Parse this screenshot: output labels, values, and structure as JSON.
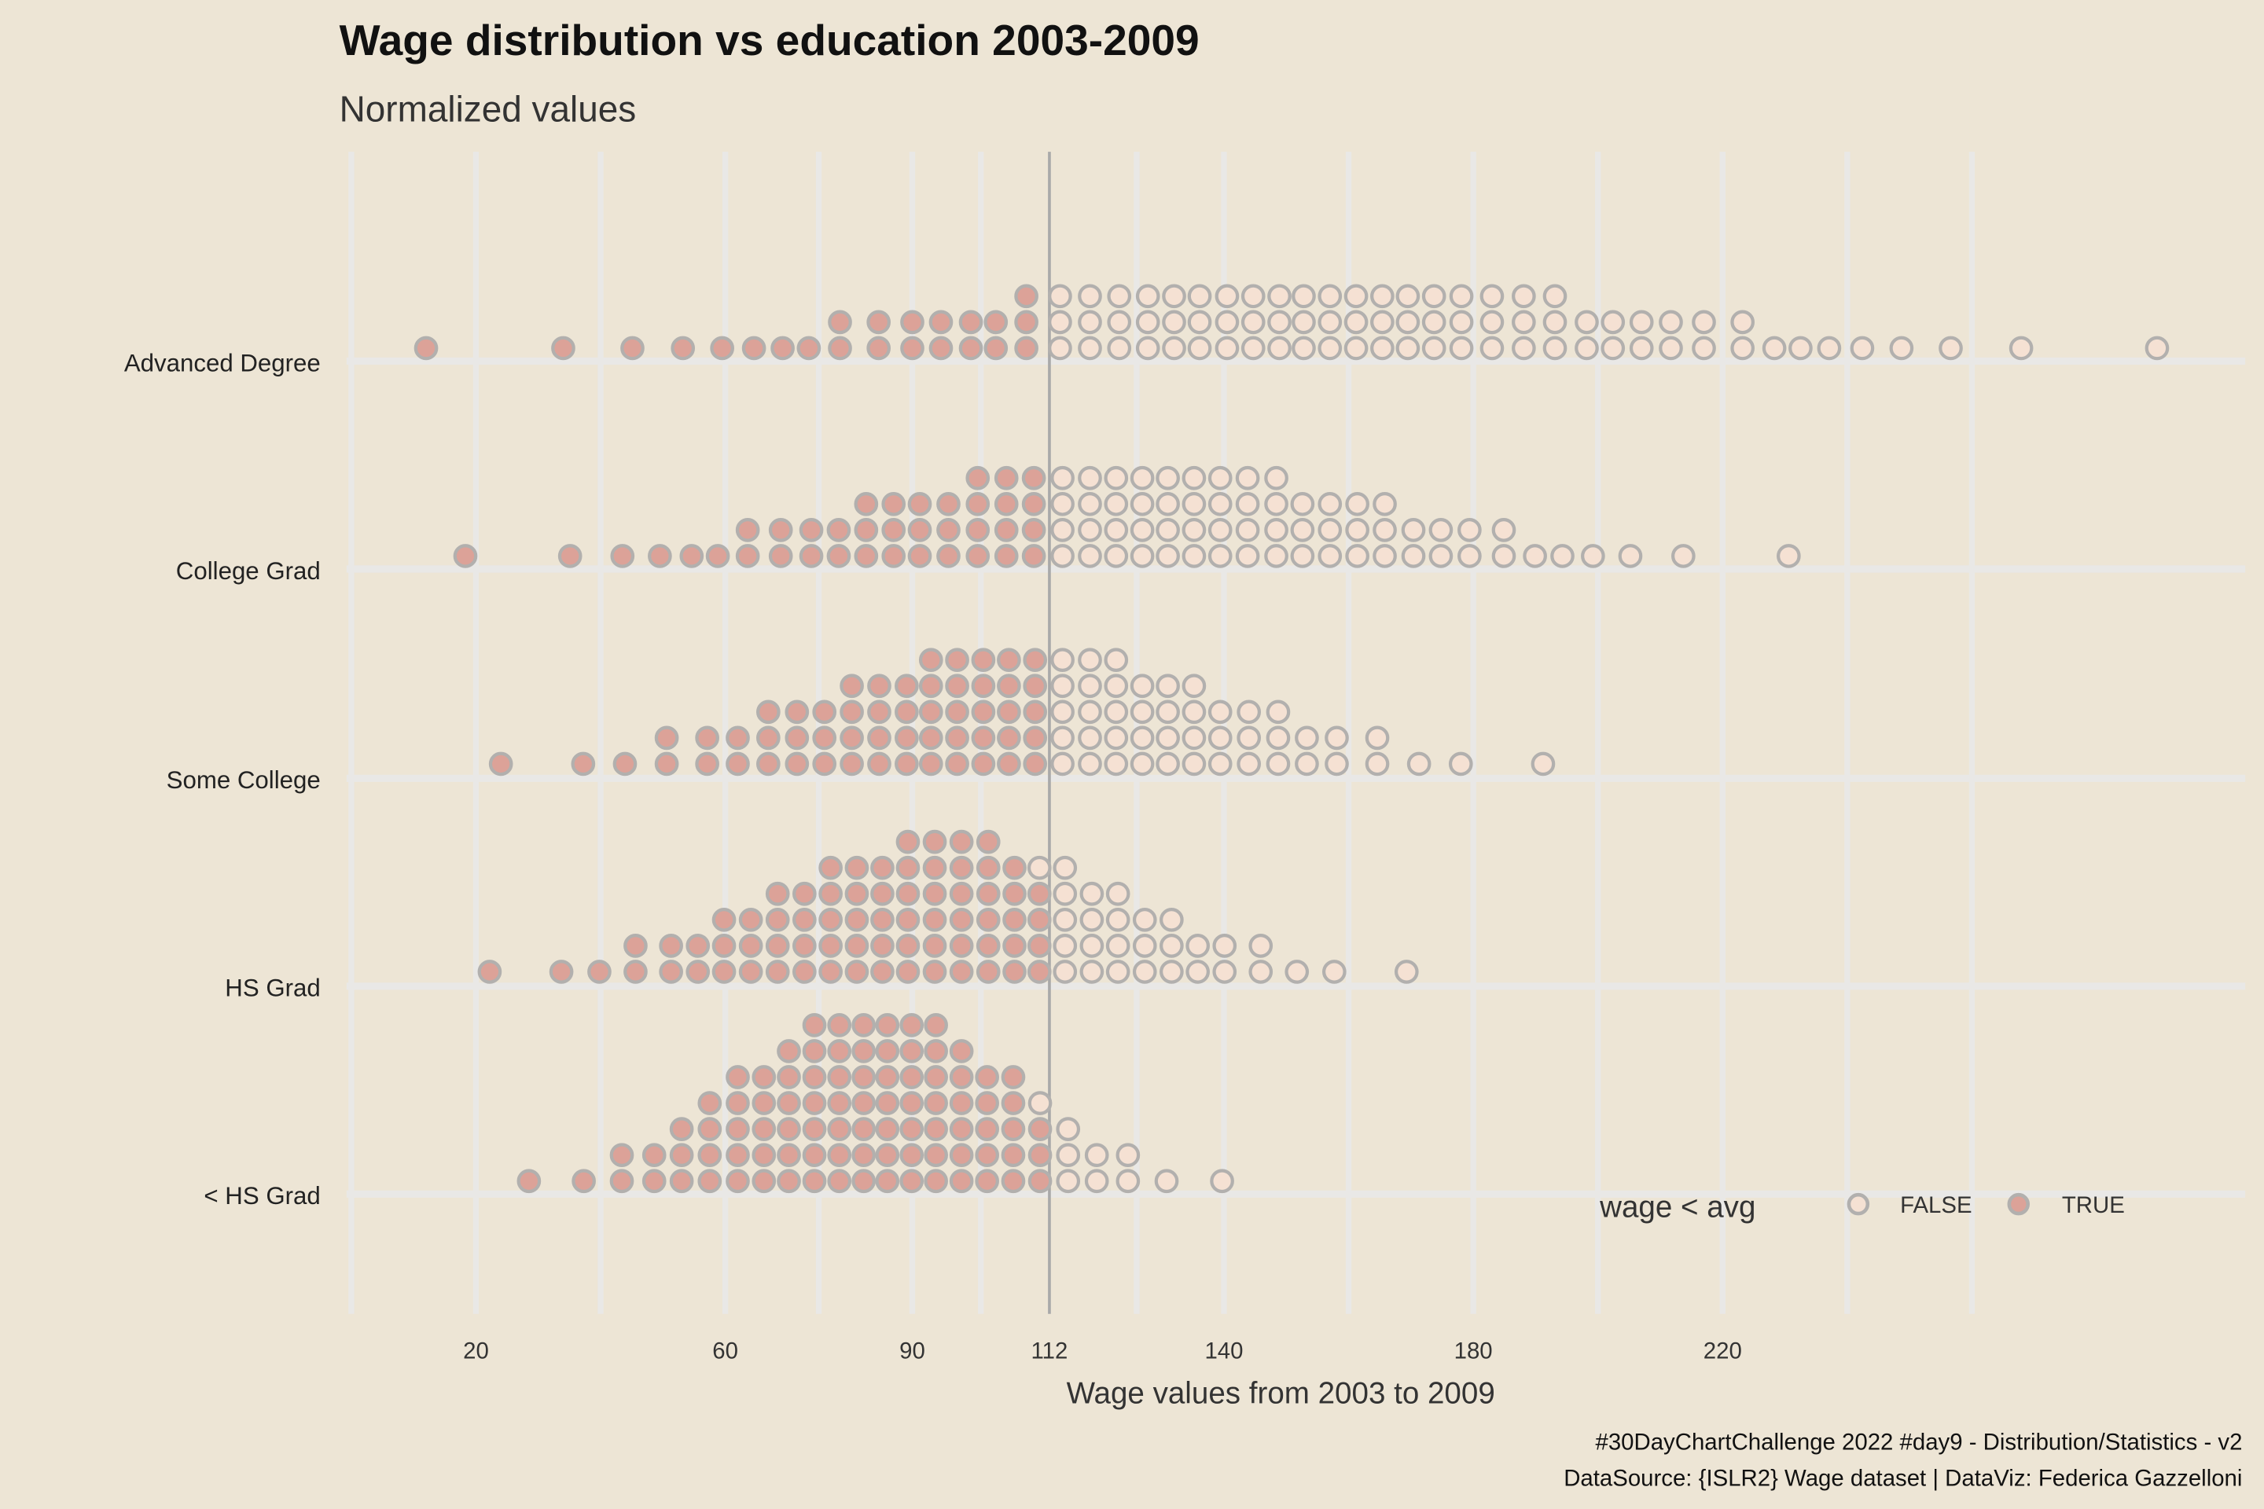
{
  "chart_data": {
    "type": "dotplot",
    "title": "Wage distribution vs education 2003-2009",
    "subtitle": "Normalized values",
    "xlabel": "Wage values from 2003 to 2009",
    "ylabel": "",
    "xlim": [
      0,
      303
    ],
    "x_ticks": [
      20,
      60,
      90,
      112,
      140,
      180,
      220
    ],
    "x_tick_labels": [
      "20",
      "60",
      "90",
      "112",
      "140",
      "180",
      "220"
    ],
    "grid_x": [
      0,
      20,
      40,
      60,
      75,
      90,
      101,
      126,
      140,
      160,
      180,
      200,
      220,
      240,
      260
    ],
    "average_line": 112,
    "legend": {
      "title": "wage < avg",
      "placement": "bottom-right",
      "items": [
        {
          "label": "FALSE",
          "fill": "#f5e1d3"
        },
        {
          "label": "TRUE",
          "fill": "#dca298"
        }
      ]
    },
    "colors": {
      "true_fill": "#dca298",
      "false_fill": "#f5e1d3",
      "stroke": "#b2b0ae",
      "avg_line": "#a9a9a9",
      "grid": "#e9e8e6",
      "background": "#ede5d5"
    },
    "stack_format": [
      "wage_bin",
      "count_TRUE",
      "count_FALSE"
    ],
    "categories": [
      {
        "label": "Advanced Degree",
        "stacks": [
          [
            12.0,
            1,
            0
          ],
          [
            34.0,
            1,
            0
          ],
          [
            45.1,
            1,
            0
          ],
          [
            53.2,
            1,
            0
          ],
          [
            59.5,
            1,
            0
          ],
          [
            64.6,
            1,
            0
          ],
          [
            69.2,
            1,
            0
          ],
          [
            73.4,
            1,
            0
          ],
          [
            78.4,
            2,
            0
          ],
          [
            84.6,
            2,
            0
          ],
          [
            90.0,
            2,
            0
          ],
          [
            94.6,
            2,
            0
          ],
          [
            99.4,
            2,
            0
          ],
          [
            103.4,
            2,
            0
          ],
          [
            108.3,
            3,
            0
          ],
          [
            113.7,
            0,
            3
          ],
          [
            118.5,
            0,
            3
          ],
          [
            123.2,
            0,
            3
          ],
          [
            127.8,
            0,
            3
          ],
          [
            132.0,
            0,
            3
          ],
          [
            136.1,
            0,
            3
          ],
          [
            140.5,
            0,
            3
          ],
          [
            144.7,
            0,
            3
          ],
          [
            148.9,
            0,
            3
          ],
          [
            152.8,
            0,
            3
          ],
          [
            157.0,
            0,
            3
          ],
          [
            161.2,
            0,
            3
          ],
          [
            165.4,
            0,
            3
          ],
          [
            169.5,
            0,
            3
          ],
          [
            173.7,
            0,
            3
          ],
          [
            178.1,
            0,
            3
          ],
          [
            183.0,
            0,
            3
          ],
          [
            188.1,
            0,
            3
          ],
          [
            193.1,
            0,
            3
          ],
          [
            198.2,
            0,
            2
          ],
          [
            202.4,
            0,
            2
          ],
          [
            207.0,
            0,
            2
          ],
          [
            211.7,
            0,
            2
          ],
          [
            217.0,
            0,
            2
          ],
          [
            223.2,
            0,
            2
          ],
          [
            228.3,
            0,
            1
          ],
          [
            232.5,
            0,
            1
          ],
          [
            237.1,
            0,
            1
          ],
          [
            242.4,
            0,
            1
          ],
          [
            248.7,
            0,
            1
          ],
          [
            256.6,
            0,
            1
          ],
          [
            267.9,
            0,
            1
          ],
          [
            289.7,
            0,
            1
          ]
        ]
      },
      {
        "label": "College Grad",
        "stacks": [
          [
            18.3,
            1,
            0
          ],
          [
            35.1,
            1,
            0
          ],
          [
            43.5,
            1,
            0
          ],
          [
            49.5,
            1,
            0
          ],
          [
            54.6,
            1,
            0
          ],
          [
            58.8,
            1,
            0
          ],
          [
            63.6,
            2,
            0
          ],
          [
            68.9,
            2,
            0
          ],
          [
            73.8,
            2,
            0
          ],
          [
            78.2,
            2,
            0
          ],
          [
            82.6,
            3,
            0
          ],
          [
            87.0,
            3,
            0
          ],
          [
            91.2,
            3,
            0
          ],
          [
            95.8,
            3,
            0
          ],
          [
            100.5,
            4,
            0
          ],
          [
            105.1,
            4,
            0
          ],
          [
            109.5,
            4,
            0
          ],
          [
            114.1,
            0,
            4
          ],
          [
            118.5,
            0,
            4
          ],
          [
            122.7,
            0,
            4
          ],
          [
            126.9,
            0,
            4
          ],
          [
            131.0,
            0,
            4
          ],
          [
            135.2,
            0,
            4
          ],
          [
            139.4,
            0,
            4
          ],
          [
            143.8,
            0,
            4
          ],
          [
            148.4,
            0,
            4
          ],
          [
            152.6,
            0,
            3
          ],
          [
            157.0,
            0,
            3
          ],
          [
            161.4,
            0,
            3
          ],
          [
            165.8,
            0,
            3
          ],
          [
            170.4,
            0,
            2
          ],
          [
            174.8,
            0,
            2
          ],
          [
            179.4,
            0,
            2
          ],
          [
            184.9,
            0,
            2
          ],
          [
            189.9,
            0,
            1
          ],
          [
            194.3,
            0,
            1
          ],
          [
            199.2,
            0,
            1
          ],
          [
            205.2,
            0,
            1
          ],
          [
            213.7,
            0,
            1
          ],
          [
            230.6,
            0,
            1
          ]
        ]
      },
      {
        "label": "Some College",
        "stacks": [
          [
            24.0,
            1,
            0
          ],
          [
            37.2,
            1,
            0
          ],
          [
            43.9,
            1,
            0
          ],
          [
            50.6,
            2,
            0
          ],
          [
            57.1,
            2,
            0
          ],
          [
            62.0,
            2,
            0
          ],
          [
            66.9,
            3,
            0
          ],
          [
            71.5,
            3,
            0
          ],
          [
            75.9,
            3,
            0
          ],
          [
            80.3,
            4,
            0
          ],
          [
            84.7,
            4,
            0
          ],
          [
            89.1,
            4,
            0
          ],
          [
            93.0,
            5,
            0
          ],
          [
            97.2,
            5,
            0
          ],
          [
            101.4,
            5,
            0
          ],
          [
            105.5,
            5,
            0
          ],
          [
            109.7,
            5,
            0
          ],
          [
            114.1,
            0,
            5
          ],
          [
            118.5,
            0,
            5
          ],
          [
            122.7,
            0,
            5
          ],
          [
            126.9,
            0,
            4
          ],
          [
            131.0,
            0,
            4
          ],
          [
            135.2,
            0,
            4
          ],
          [
            139.4,
            0,
            3
          ],
          [
            144.0,
            0,
            3
          ],
          [
            148.7,
            0,
            3
          ],
          [
            153.3,
            0,
            2
          ],
          [
            158.1,
            0,
            2
          ],
          [
            164.6,
            0,
            2
          ],
          [
            171.3,
            0,
            1
          ],
          [
            178.0,
            0,
            1
          ],
          [
            191.2,
            0,
            1
          ]
        ]
      },
      {
        "label": "HS Grad",
        "stacks": [
          [
            22.2,
            1,
            0
          ],
          [
            33.7,
            1,
            0
          ],
          [
            39.8,
            1,
            0
          ],
          [
            45.6,
            2,
            0
          ],
          [
            51.3,
            2,
            0
          ],
          [
            55.6,
            2,
            0
          ],
          [
            59.8,
            3,
            0
          ],
          [
            64.1,
            3,
            0
          ],
          [
            68.4,
            4,
            0
          ],
          [
            72.7,
            4,
            0
          ],
          [
            76.9,
            5,
            0
          ],
          [
            81.1,
            5,
            0
          ],
          [
            85.2,
            5,
            0
          ],
          [
            89.3,
            6,
            0
          ],
          [
            93.6,
            6,
            0
          ],
          [
            97.9,
            6,
            0
          ],
          [
            102.2,
            6,
            0
          ],
          [
            106.4,
            5,
            0
          ],
          [
            110.4,
            4,
            1
          ],
          [
            114.5,
            0,
            5
          ],
          [
            118.8,
            0,
            4
          ],
          [
            123.0,
            0,
            4
          ],
          [
            127.3,
            0,
            3
          ],
          [
            131.6,
            0,
            3
          ],
          [
            135.8,
            0,
            2
          ],
          [
            140.1,
            0,
            2
          ],
          [
            145.9,
            0,
            2
          ],
          [
            151.7,
            0,
            1
          ],
          [
            157.7,
            0,
            1
          ],
          [
            169.3,
            0,
            1
          ]
        ]
      },
      {
        "label": "< HS Grad",
        "stacks": [
          [
            28.5,
            1,
            0
          ],
          [
            37.3,
            1,
            0
          ],
          [
            43.4,
            2,
            0
          ],
          [
            48.6,
            2,
            0
          ],
          [
            53.0,
            3,
            0
          ],
          [
            57.5,
            4,
            0
          ],
          [
            62.0,
            5,
            0
          ],
          [
            66.2,
            5,
            0
          ],
          [
            70.2,
            6,
            0
          ],
          [
            74.3,
            7,
            0
          ],
          [
            78.3,
            7,
            0
          ],
          [
            82.2,
            7,
            0
          ],
          [
            86.0,
            7,
            0
          ],
          [
            89.9,
            7,
            0
          ],
          [
            93.8,
            7,
            0
          ],
          [
            97.9,
            6,
            0
          ],
          [
            102.0,
            5,
            0
          ],
          [
            106.2,
            5,
            0
          ],
          [
            110.5,
            3,
            1
          ],
          [
            115.0,
            0,
            3
          ],
          [
            119.6,
            0,
            2
          ],
          [
            124.6,
            0,
            2
          ],
          [
            130.8,
            0,
            1
          ],
          [
            139.7,
            0,
            1
          ]
        ]
      }
    ],
    "caption": [
      "#30DayChartChallenge 2022 #day9 - Distribution/Statistics - v2",
      "DataSource: {ISLR2} Wage dataset | DataViz: Federica Gazzelloni"
    ]
  }
}
